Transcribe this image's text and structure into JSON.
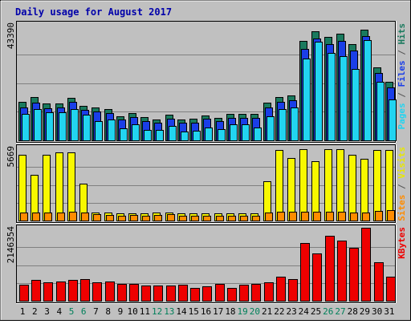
{
  "chart_data": {
    "type": "bar",
    "title": "Daily usage for August 2017",
    "days": [
      "1",
      "2",
      "3",
      "4",
      "5",
      "6",
      "7",
      "8",
      "9",
      "10",
      "11",
      "12",
      "13",
      "14",
      "15",
      "16",
      "17",
      "18",
      "19",
      "20",
      "21",
      "22",
      "23",
      "24",
      "25",
      "26",
      "27",
      "28",
      "29",
      "30",
      "31"
    ],
    "weekend_days": [
      "5",
      "6",
      "12",
      "13",
      "19",
      "20",
      "26",
      "27"
    ],
    "panels": [
      {
        "id": "requests",
        "max_label": "43390",
        "ylim": [
          0,
          43390
        ],
        "series": [
          {
            "name": "Hits",
            "color": "#1a7a5e",
            "values": [
              14600,
              16400,
              14000,
              14000,
              16200,
              13000,
              12500,
              11800,
              9200,
              10200,
              8700,
              8000,
              9700,
              8000,
              8100,
              9500,
              8600,
              10000,
              10000,
              10000,
              14200,
              16400,
              17100,
              37600,
              41200,
              39200,
              40500,
              36400,
              41900,
              27500,
              22000
            ]
          },
          {
            "name": "Files",
            "color": "#1a3ee8",
            "values": [
              12500,
              14200,
              12100,
              12300,
              14600,
              11400,
              10900,
              10400,
              7800,
              8700,
              7200,
              6800,
              8200,
              6700,
              6800,
              8200,
              7300,
              8600,
              8600,
              8500,
              12500,
              14600,
              15100,
              34600,
              38500,
              36500,
              37500,
              34000,
              39500,
              25500,
              20000
            ]
          },
          {
            "name": "Pages",
            "color": "#22d4f0",
            "values": [
              10000,
              11700,
              10700,
              10700,
              11700,
              9800,
              7400,
              8000,
              4600,
              6200,
              4000,
              3800,
              5400,
              3300,
              3500,
              5000,
              4300,
              6000,
              6000,
              5000,
              9200,
              11700,
              12300,
              31000,
              37200,
              33000,
              32000,
              26900,
              38000,
              22200,
              15500
            ]
          }
        ],
        "axis_labels": [
          {
            "text": "Pages",
            "color": "#22d4f0"
          },
          {
            "text": " / ",
            "color": "#555555"
          },
          {
            "text": "Files",
            "color": "#1a3ee8"
          },
          {
            "text": " / ",
            "color": "#555555"
          },
          {
            "text": "Hits",
            "color": "#1a7a5e"
          }
        ]
      },
      {
        "id": "visitors",
        "max_label": "5669",
        "ylim": [
          0,
          5669
        ],
        "series": [
          {
            "name": "Visits",
            "color": "#f8f800",
            "values": [
              5200,
              3600,
              5200,
              5400,
              5400,
              2900,
              650,
              650,
              550,
              550,
              550,
              650,
              650,
              550,
              550,
              550,
              550,
              550,
              550,
              550,
              3100,
              5600,
              5000,
              5700,
              4700,
              5700,
              5700,
              5200,
              4900,
              5600,
              5600
            ]
          },
          {
            "name": "Sites",
            "color": "#ff8c00",
            "values": [
              650,
              650,
              650,
              650,
              700,
              650,
              500,
              450,
              400,
              450,
              400,
              450,
              500,
              400,
              400,
              400,
              400,
              400,
              400,
              400,
              650,
              700,
              700,
              700,
              700,
              700,
              700,
              650,
              650,
              750,
              850
            ]
          }
        ],
        "axis_labels": [
          {
            "text": "Sites",
            "color": "#ff8c00"
          },
          {
            "text": " / ",
            "color": "#555555"
          },
          {
            "text": "Visits",
            "color": "#e8e800"
          }
        ]
      },
      {
        "id": "kbytes",
        "max_label": "2146354",
        "ylim": [
          0,
          2146354
        ],
        "series": [
          {
            "name": "KBytes",
            "color": "#ee0000",
            "values": [
              485000,
              617000,
              554000,
              577000,
              626000,
              663000,
              565000,
              589000,
              498000,
              498000,
              466000,
              466000,
              466000,
              482000,
              393000,
              435000,
              503000,
              385000,
              491000,
              498000,
              553000,
              721000,
              663000,
              1740000,
              1430000,
              1960000,
              1820000,
              1580000,
              2190000,
              1160000,
              721000
            ]
          }
        ],
        "axis_labels": [
          {
            "text": "KBytes",
            "color": "#ee0000"
          }
        ]
      }
    ]
  }
}
